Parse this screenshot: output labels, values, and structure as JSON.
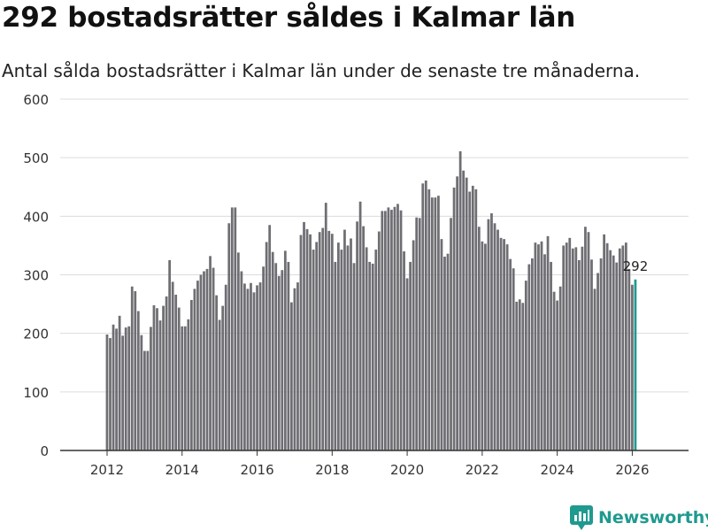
{
  "title": "292 bostadsrätter såldes i Kalmar län",
  "subtitle": "Antal sålda bostadsrätter i Kalmar län under de senaste tre månaderna.",
  "brand": "Newsworthy",
  "colors": {
    "bar": "#6e6e73",
    "highlight": "#1f9a8f",
    "grid": "#dcdcdc",
    "axis": "#333333"
  },
  "chart_data": {
    "type": "bar",
    "x_start": 2012.0,
    "x_step": 0.083333,
    "xlim": [
      2010.75,
      2027.5
    ],
    "ylim": [
      0,
      600
    ],
    "yticks": [
      0,
      100,
      200,
      300,
      400,
      500,
      600
    ],
    "xticks": [
      2012,
      2014,
      2016,
      2018,
      2020,
      2022,
      2024,
      2026
    ],
    "values": [
      198,
      192,
      215,
      208,
      230,
      196,
      210,
      212,
      280,
      272,
      238,
      197,
      170,
      170,
      211,
      248,
      243,
      222,
      247,
      263,
      325,
      288,
      266,
      244,
      212,
      212,
      224,
      257,
      276,
      290,
      300,
      306,
      310,
      332,
      312,
      265,
      223,
      247,
      283,
      388,
      415,
      415,
      338,
      306,
      285,
      276,
      286,
      270,
      282,
      287,
      314,
      356,
      385,
      339,
      320,
      298,
      308,
      341,
      322,
      253,
      277,
      287,
      368,
      390,
      378,
      369,
      343,
      356,
      373,
      380,
      423,
      375,
      370,
      322,
      355,
      343,
      377,
      350,
      362,
      320,
      391,
      425,
      383,
      347,
      322,
      319,
      343,
      374,
      409,
      409,
      415,
      411,
      416,
      421,
      410,
      340,
      294,
      322,
      359,
      398,
      397,
      456,
      461,
      446,
      432,
      432,
      435,
      361,
      331,
      336,
      397,
      449,
      468,
      511,
      478,
      466,
      442,
      452,
      446,
      382,
      357,
      353,
      395,
      405,
      388,
      377,
      363,
      361,
      352,
      327,
      311,
      254,
      258,
      252,
      290,
      318,
      328,
      355,
      352,
      357,
      335,
      366,
      322,
      271,
      256,
      280,
      350,
      355,
      363,
      345,
      347,
      325,
      348,
      382,
      373,
      326,
      276,
      303,
      328,
      369,
      354,
      342,
      333,
      321,
      345,
      350,
      355,
      310,
      283,
      292
    ],
    "highlight_last": true,
    "label": {
      "text": "292"
    }
  }
}
